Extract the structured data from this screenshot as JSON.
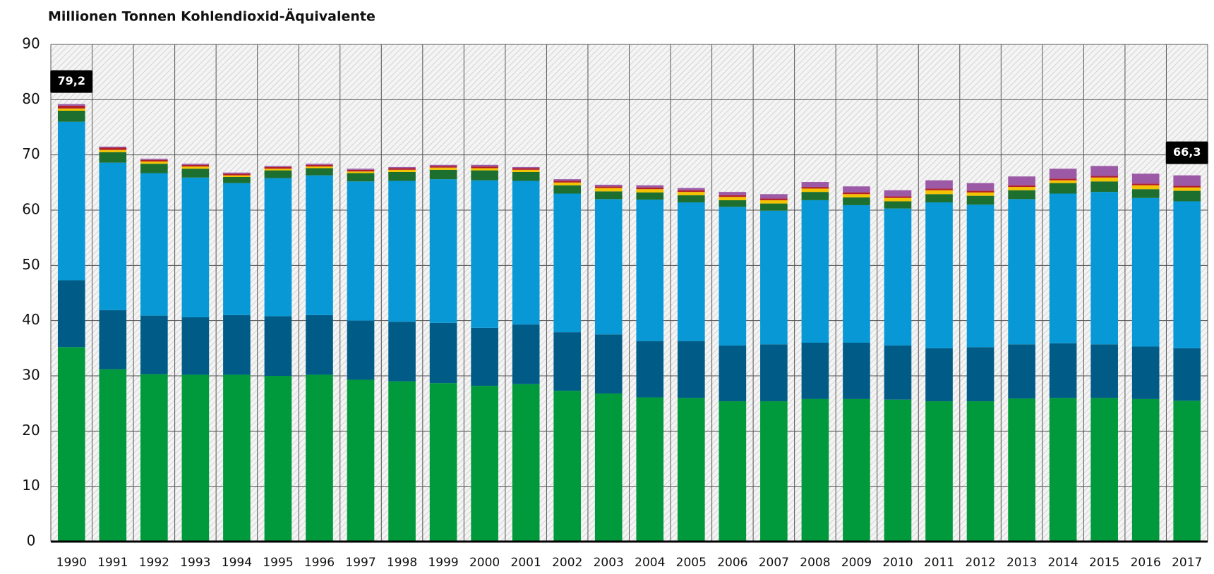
{
  "chart_data": {
    "type": "stacked_bar",
    "title": "Millionen Tonnen Kohlendioxid-Äquivalente",
    "categories": [
      "1990",
      "1991",
      "1992",
      "1993",
      "1994",
      "1995",
      "1996",
      "1997",
      "1998",
      "1999",
      "2000",
      "2001",
      "2002",
      "2003",
      "2004",
      "2005",
      "2006",
      "2007",
      "2008",
      "2009",
      "2010",
      "2011",
      "2012",
      "2013",
      "2014",
      "2015",
      "2016",
      "2017"
    ],
    "series": [
      {
        "color": "#009a3d",
        "values": [
          35.2,
          31.2,
          30.3,
          30.2,
          30.2,
          30.0,
          30.2,
          29.3,
          29.0,
          28.7,
          28.2,
          28.5,
          27.3,
          26.8,
          26.1,
          26.0,
          25.4,
          25.4,
          25.8,
          25.8,
          25.7,
          25.4,
          25.4,
          25.9,
          26.0,
          26.0,
          25.8,
          25.5
        ]
      },
      {
        "color": "#005c86",
        "values": [
          12.1,
          10.7,
          10.6,
          10.4,
          10.8,
          10.8,
          10.8,
          10.7,
          10.8,
          10.9,
          10.5,
          10.8,
          10.6,
          10.7,
          10.2,
          10.3,
          10.1,
          10.3,
          10.2,
          10.2,
          9.8,
          9.6,
          9.8,
          9.8,
          9.9,
          9.7,
          9.5,
          9.5
        ]
      },
      {
        "color": "#0898d5",
        "values": [
          28.7,
          26.7,
          25.8,
          25.3,
          23.9,
          25.0,
          25.3,
          25.2,
          25.5,
          26.0,
          26.7,
          26.0,
          25.1,
          24.5,
          25.6,
          25.1,
          25.1,
          24.2,
          25.8,
          24.9,
          24.8,
          26.4,
          25.8,
          26.3,
          27.1,
          27.6,
          26.9,
          26.6
        ]
      },
      {
        "color": "#1d6f2f",
        "values": [
          2.0,
          1.9,
          1.7,
          1.6,
          1.1,
          1.4,
          1.3,
          1.5,
          1.6,
          1.7,
          1.8,
          1.6,
          1.5,
          1.4,
          1.3,
          1.3,
          1.2,
          1.3,
          1.5,
          1.4,
          1.3,
          1.5,
          1.6,
          1.6,
          1.9,
          1.9,
          1.6,
          1.9
        ]
      },
      {
        "color": "#f4c300",
        "values": [
          0.4,
          0.4,
          0.4,
          0.4,
          0.3,
          0.3,
          0.3,
          0.3,
          0.4,
          0.4,
          0.4,
          0.4,
          0.5,
          0.6,
          0.6,
          0.6,
          0.6,
          0.6,
          0.6,
          0.6,
          0.6,
          0.7,
          0.6,
          0.6,
          0.5,
          0.7,
          0.7,
          0.6
        ]
      },
      {
        "color": "#b3202a",
        "values": [
          0.5,
          0.4,
          0.3,
          0.3,
          0.3,
          0.3,
          0.3,
          0.3,
          0.3,
          0.3,
          0.3,
          0.3,
          0.3,
          0.3,
          0.3,
          0.3,
          0.3,
          0.3,
          0.3,
          0.3,
          0.3,
          0.3,
          0.3,
          0.3,
          0.3,
          0.3,
          0.3,
          0.3
        ]
      },
      {
        "color": "#9c5aa6",
        "values": [
          0.3,
          0.2,
          0.2,
          0.2,
          0.2,
          0.2,
          0.2,
          0.2,
          0.2,
          0.2,
          0.3,
          0.2,
          0.3,
          0.3,
          0.4,
          0.4,
          0.6,
          0.8,
          0.9,
          1.1,
          1.1,
          1.5,
          1.4,
          1.6,
          1.8,
          1.8,
          1.8,
          1.9
        ]
      }
    ],
    "annotations": [
      {
        "category": "1990",
        "value": 79.2,
        "label": "79,2"
      },
      {
        "category": "2017",
        "value": 66.3,
        "label": "66,3"
      }
    ],
    "ylim": [
      0,
      90
    ],
    "yticks": [
      0,
      10,
      20,
      30,
      40,
      50,
      60,
      70,
      80,
      90
    ],
    "grid": true
  }
}
